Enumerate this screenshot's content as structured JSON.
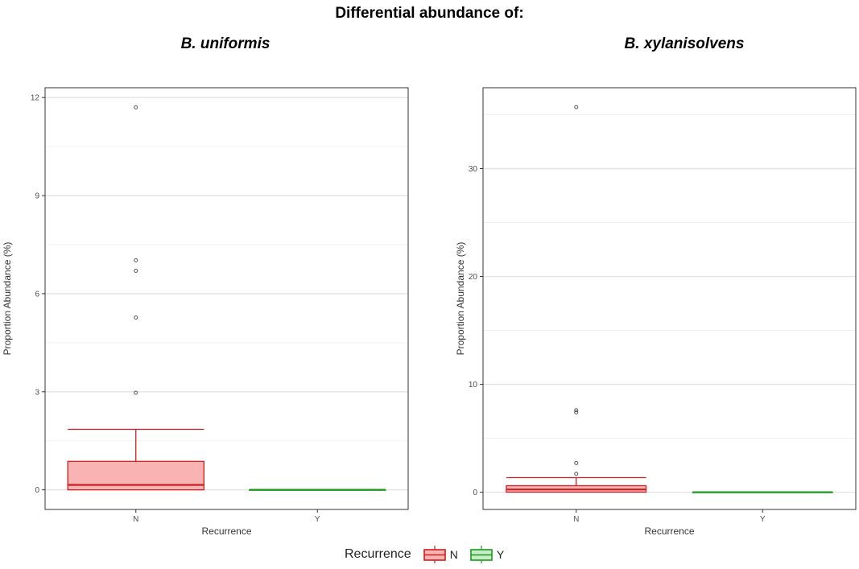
{
  "title": "Differential abundance of:",
  "legend": {
    "title": "Recurrence",
    "items": [
      {
        "label": "N",
        "color": "#cc1f1f",
        "fill": "#f9b3b3"
      },
      {
        "label": "Y",
        "color": "#1a9a1a",
        "fill": "#c8ecc8"
      }
    ]
  },
  "chart_data": [
    {
      "type": "box",
      "title": "B. uniformis",
      "xlabel": "Recurrence",
      "ylabel": "Proportion Abundance (%)",
      "categories": [
        "N",
        "Y"
      ],
      "ylim": [
        -0.6,
        12.3
      ],
      "yticks": [
        0,
        3,
        6,
        9,
        12
      ],
      "grid": true,
      "boxes": [
        {
          "category": "N",
          "min": 0,
          "q1": 0,
          "median": 0.15,
          "q3": 0.87,
          "whisker_high": 1.85,
          "outliers": [
            2.97,
            5.27,
            6.7,
            7.02,
            11.7
          ]
        },
        {
          "category": "Y",
          "min": 0,
          "q1": 0,
          "median": 0,
          "q3": 0,
          "whisker_high": 0,
          "outliers": []
        }
      ]
    },
    {
      "type": "box",
      "title": "B. xylanisolvens",
      "xlabel": "Recurrence",
      "ylabel": "Proportion Abundance (%)",
      "categories": [
        "N",
        "Y"
      ],
      "ylim": [
        -1.6,
        37.5
      ],
      "yticks": [
        0,
        10,
        20,
        30
      ],
      "grid": true,
      "boxes": [
        {
          "category": "N",
          "min": 0,
          "q1": 0,
          "median": 0.25,
          "q3": 0.6,
          "whisker_high": 1.35,
          "outliers": [
            1.7,
            2.7,
            7.4,
            7.6,
            35.7
          ]
        },
        {
          "category": "Y",
          "min": 0,
          "q1": 0,
          "median": 0,
          "q3": 0,
          "whisker_high": 0,
          "outliers": []
        }
      ]
    }
  ]
}
